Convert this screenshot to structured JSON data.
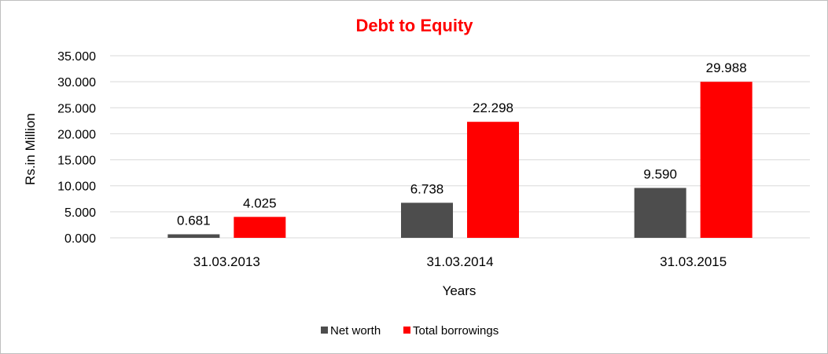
{
  "chart_data": {
    "type": "bar",
    "title": "Debt to Equity",
    "xlabel": "Years",
    "ylabel": "Rs.in Million",
    "categories": [
      "31.03.2013",
      "31.03.2014",
      "31.03.2015"
    ],
    "series": [
      {
        "name": "Net worth",
        "values": [
          0.681,
          6.738,
          9.59
        ],
        "labels": [
          "0.681",
          "6.738",
          "9.590"
        ],
        "color": "#4d4d4d"
      },
      {
        "name": "Total borrowings",
        "values": [
          4.025,
          22.298,
          29.988
        ],
        "labels": [
          "4.025",
          "22.298",
          "29.988"
        ],
        "color": "#ff0000"
      }
    ],
    "ylim": [
      0,
      35
    ],
    "yticks": [
      "0.000",
      "5.000",
      "10.000",
      "15.000",
      "20.000",
      "25.000",
      "30.000",
      "35.000"
    ],
    "grid": true,
    "legend_position": "bottom",
    "title_color": "#ff0000"
  }
}
